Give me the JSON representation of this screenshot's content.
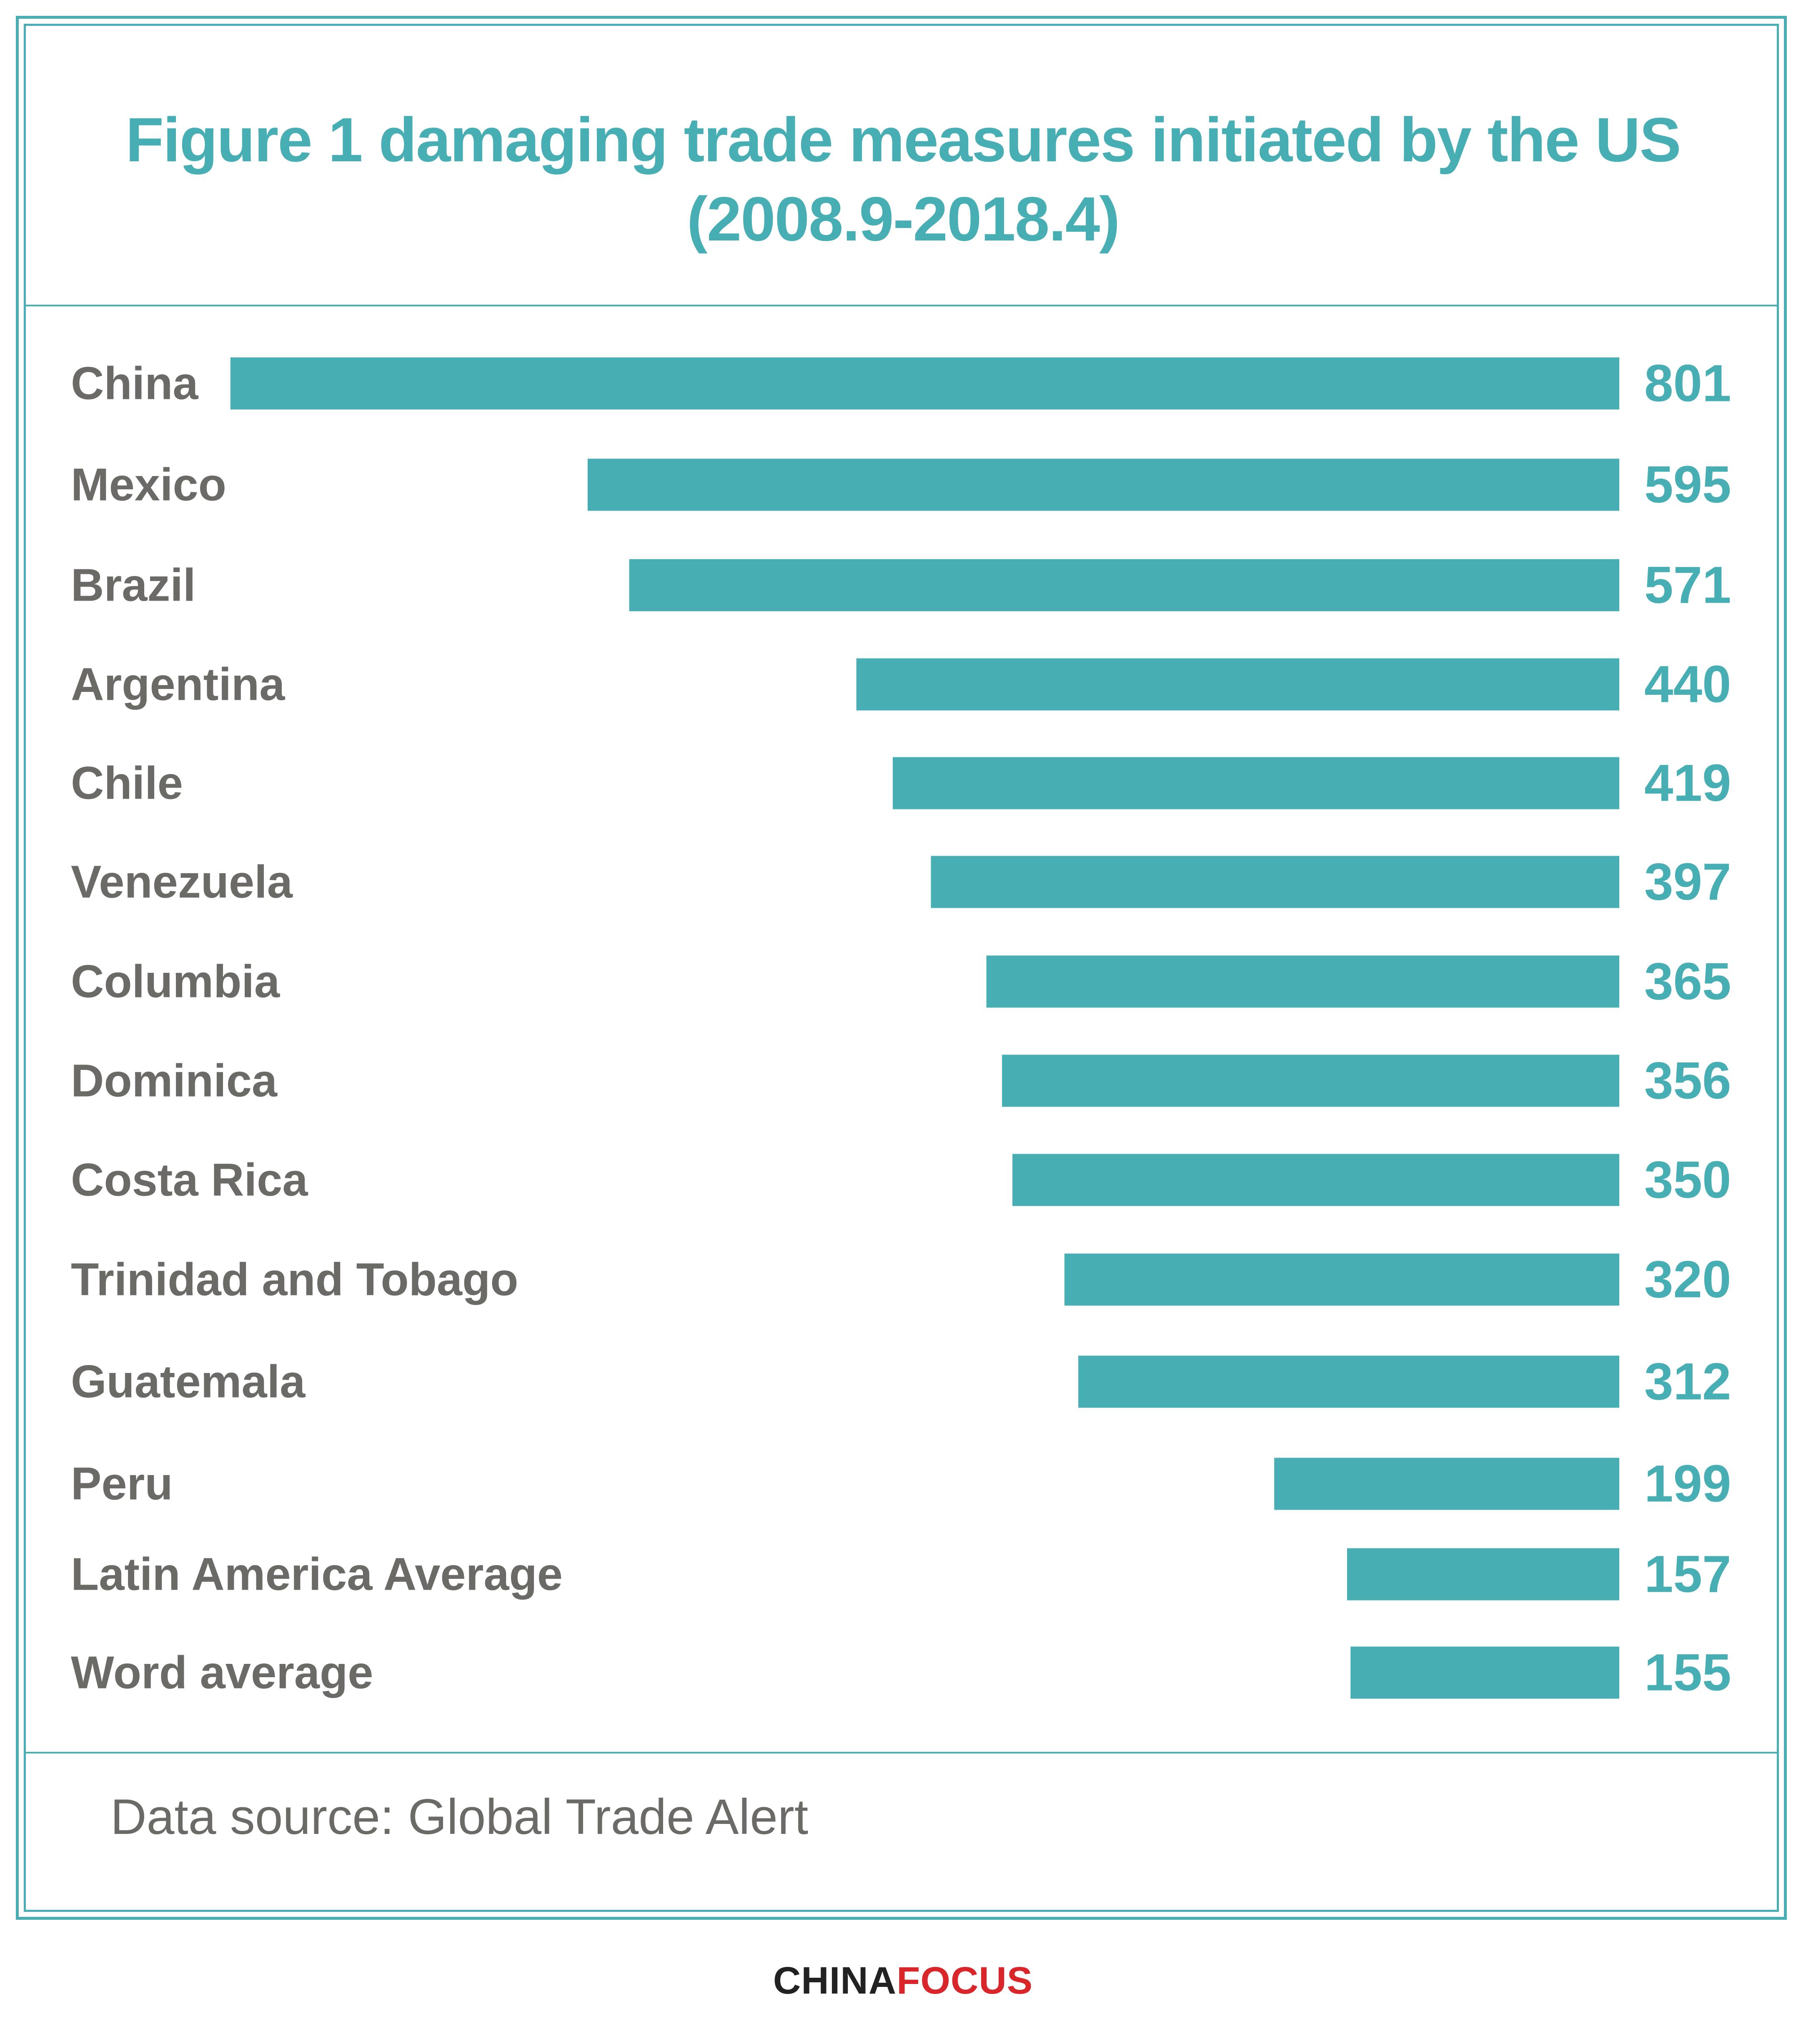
{
  "header": {
    "title_line1": "Figure 1 damaging trade measures initiated by the US",
    "title_line2": "(2008.9-2018.4)"
  },
  "footer": {
    "source": "Data source: Global Trade Alert"
  },
  "brand": {
    "part1": "CHINA",
    "part2": "FOCUS"
  },
  "colors": {
    "bar": "#47aeb4",
    "label": "#6b6a66",
    "value": "#47aeb4",
    "brand_accent": "#d9262b"
  },
  "chart_data": {
    "type": "bar",
    "orientation": "horizontal",
    "categories": [
      "China",
      "Mexico",
      "Brazil",
      "Argentina",
      "Chile",
      "Venezuela",
      "Columbia",
      "Dominica",
      "Costa Rica",
      "Trinidad and Tobago",
      "Guatemala",
      "Peru",
      "Latin America Average",
      "Word average"
    ],
    "values": [
      801,
      595,
      571,
      440,
      419,
      397,
      365,
      356,
      350,
      320,
      312,
      199,
      157,
      155
    ],
    "title": "Figure 1 damaging trade measures initiated by the US (2008.9-2018.4)",
    "xlabel": "",
    "ylabel": "",
    "grid": false,
    "legend": "none",
    "data_labels": true
  }
}
